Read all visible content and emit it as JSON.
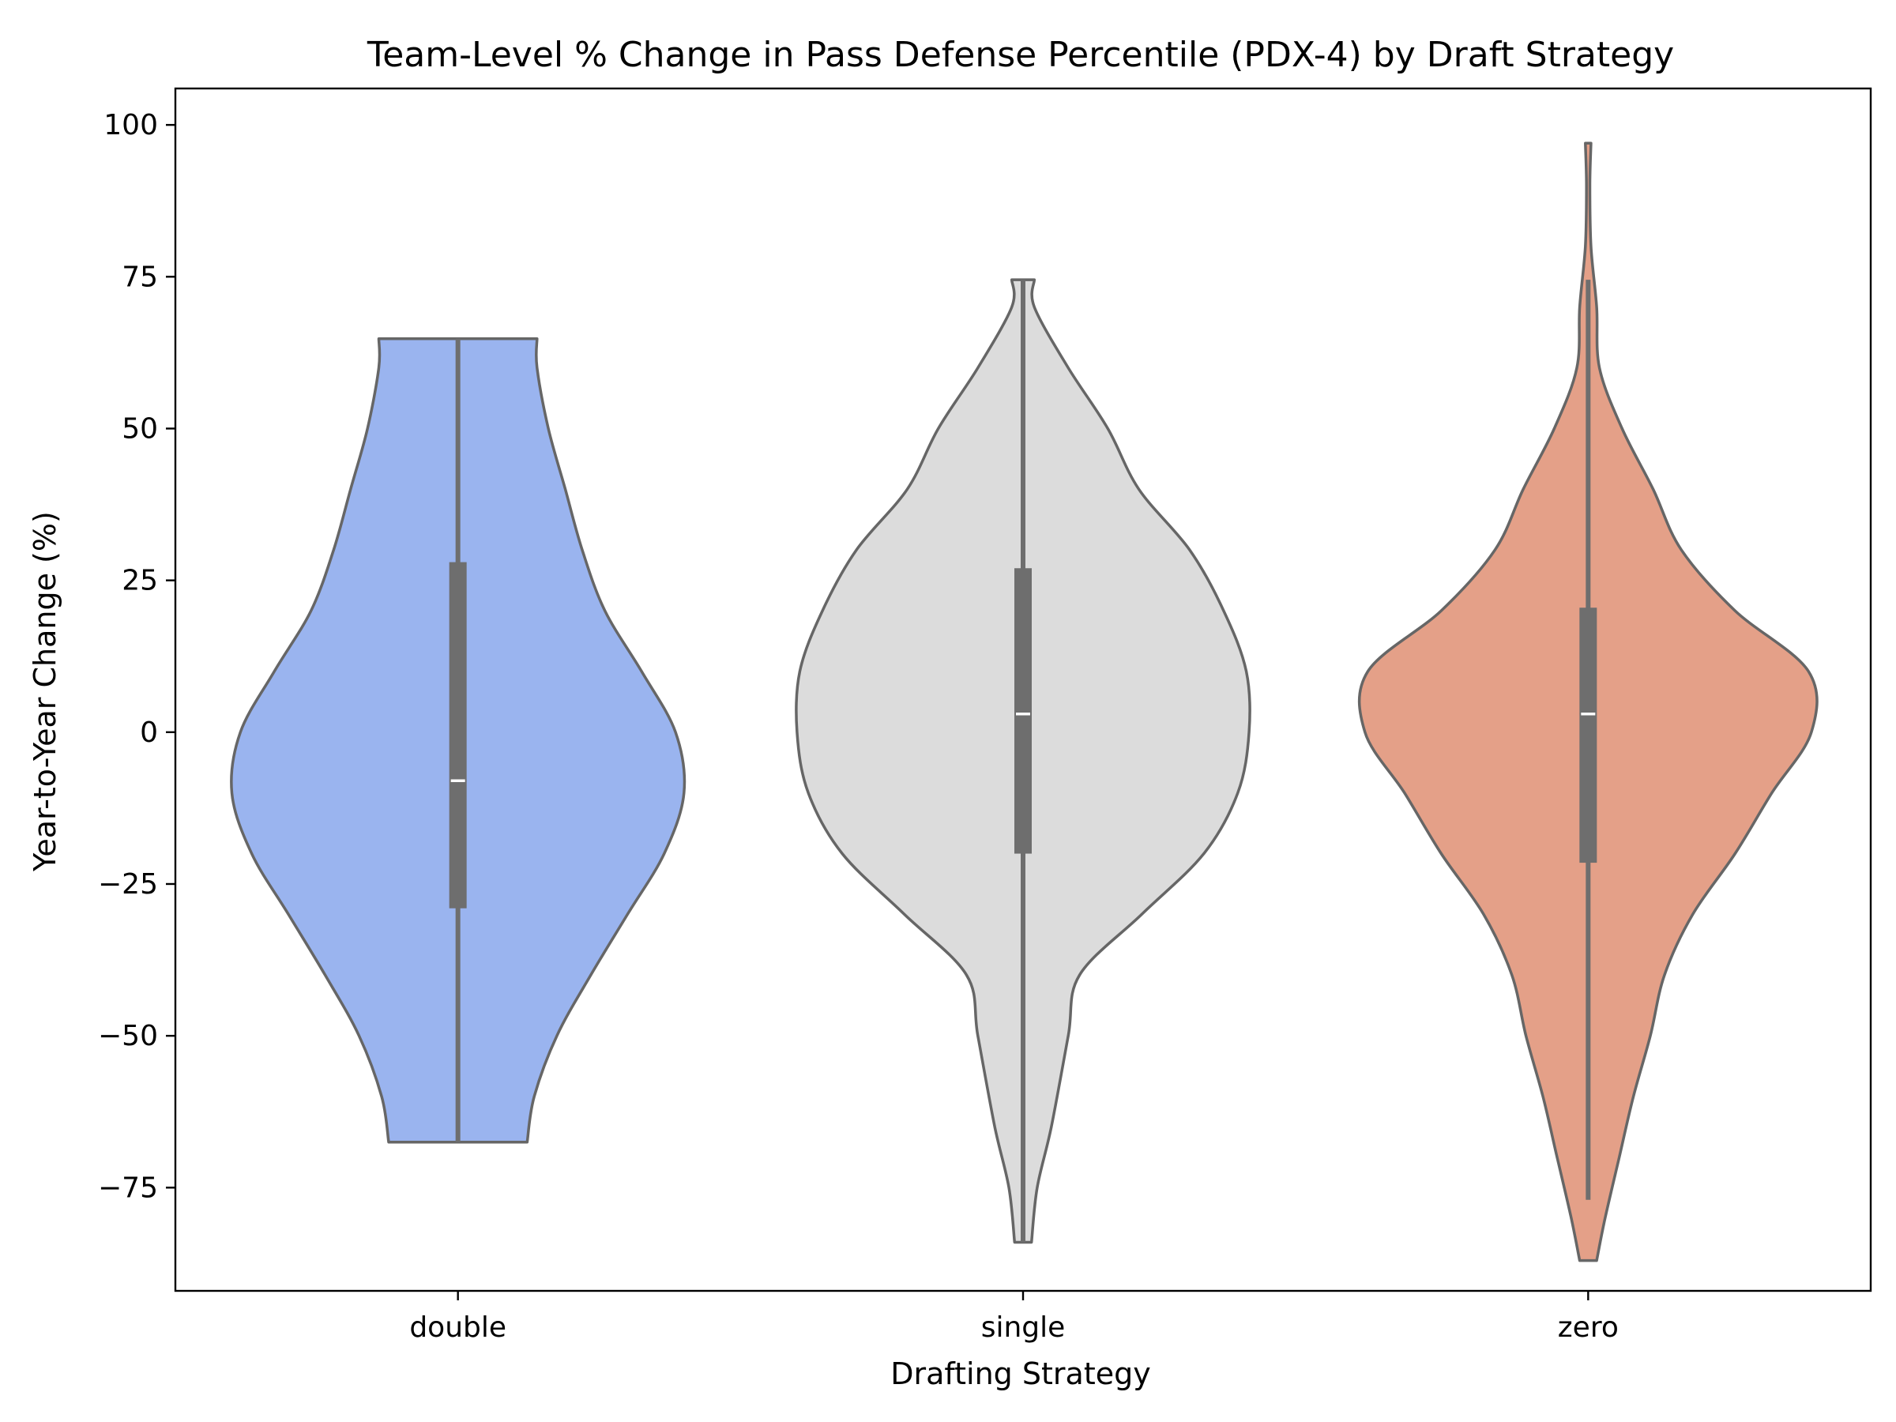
{
  "chart_data": {
    "type": "violin",
    "title": "Team-Level % Change in Pass Defense Percentile (PDX-4) by Draft Strategy",
    "xlabel": "Drafting Strategy",
    "ylabel": "Year-to-Year Change (%)",
    "ylim": [
      -92,
      106
    ],
    "yticks": [
      -75,
      -50,
      -25,
      0,
      25,
      50,
      75,
      100
    ],
    "ytick_labels": [
      "−75",
      "−50",
      "−25",
      "0",
      "25",
      "50",
      "75",
      "100"
    ],
    "grid": false,
    "categories": [
      "double",
      "single",
      "zero"
    ],
    "colors": {
      "double": "#9ab4ef",
      "single": "#dcdcdc",
      "zero": "#e4a088",
      "outline": "#666666",
      "box": "#6e6e6e",
      "median": "#ffffff"
    },
    "series": [
      {
        "category": "double",
        "min": -67.5,
        "q1": -29,
        "median": -8,
        "q3": 28,
        "max": 64.8,
        "density": [
          [
            -67.5,
            0.245
          ],
          [
            -60,
            0.27
          ],
          [
            -50,
            0.35
          ],
          [
            -40,
            0.47
          ],
          [
            -30,
            0.6
          ],
          [
            -20,
            0.73
          ],
          [
            -10,
            0.8
          ],
          [
            0,
            0.77
          ],
          [
            10,
            0.65
          ],
          [
            20,
            0.52
          ],
          [
            30,
            0.44
          ],
          [
            40,
            0.38
          ],
          [
            50,
            0.32
          ],
          [
            60,
            0.28
          ],
          [
            64.8,
            0.28
          ]
        ]
      },
      {
        "category": "single",
        "min": -84,
        "q1": -20,
        "median": 3,
        "q3": 27,
        "max": 74.5,
        "density": [
          [
            -84,
            0.03
          ],
          [
            -75,
            0.05
          ],
          [
            -65,
            0.1
          ],
          [
            -50,
            0.16
          ],
          [
            -40,
            0.2
          ],
          [
            -30,
            0.42
          ],
          [
            -20,
            0.64
          ],
          [
            -10,
            0.76
          ],
          [
            0,
            0.8
          ],
          [
            10,
            0.79
          ],
          [
            20,
            0.71
          ],
          [
            30,
            0.59
          ],
          [
            40,
            0.41
          ],
          [
            50,
            0.3
          ],
          [
            60,
            0.16
          ],
          [
            70,
            0.04
          ],
          [
            74.5,
            0.04
          ]
        ]
      },
      {
        "category": "zero",
        "min": -77,
        "q1": -21.5,
        "median": 3,
        "q3": 20.5,
        "max": 74.5,
        "density": [
          [
            -87,
            0.03
          ],
          [
            -80,
            0.06
          ],
          [
            -70,
            0.11
          ],
          [
            -60,
            0.16
          ],
          [
            -50,
            0.22
          ],
          [
            -40,
            0.27
          ],
          [
            -30,
            0.37
          ],
          [
            -20,
            0.52
          ],
          [
            -10,
            0.65
          ],
          [
            0,
            0.79
          ],
          [
            10,
            0.78
          ],
          [
            20,
            0.52
          ],
          [
            30,
            0.33
          ],
          [
            40,
            0.23
          ],
          [
            50,
            0.12
          ],
          [
            60,
            0.04
          ],
          [
            70,
            0.03
          ],
          [
            80,
            0.01
          ],
          [
            90,
            0.006
          ],
          [
            97,
            0.01
          ]
        ]
      }
    ]
  }
}
